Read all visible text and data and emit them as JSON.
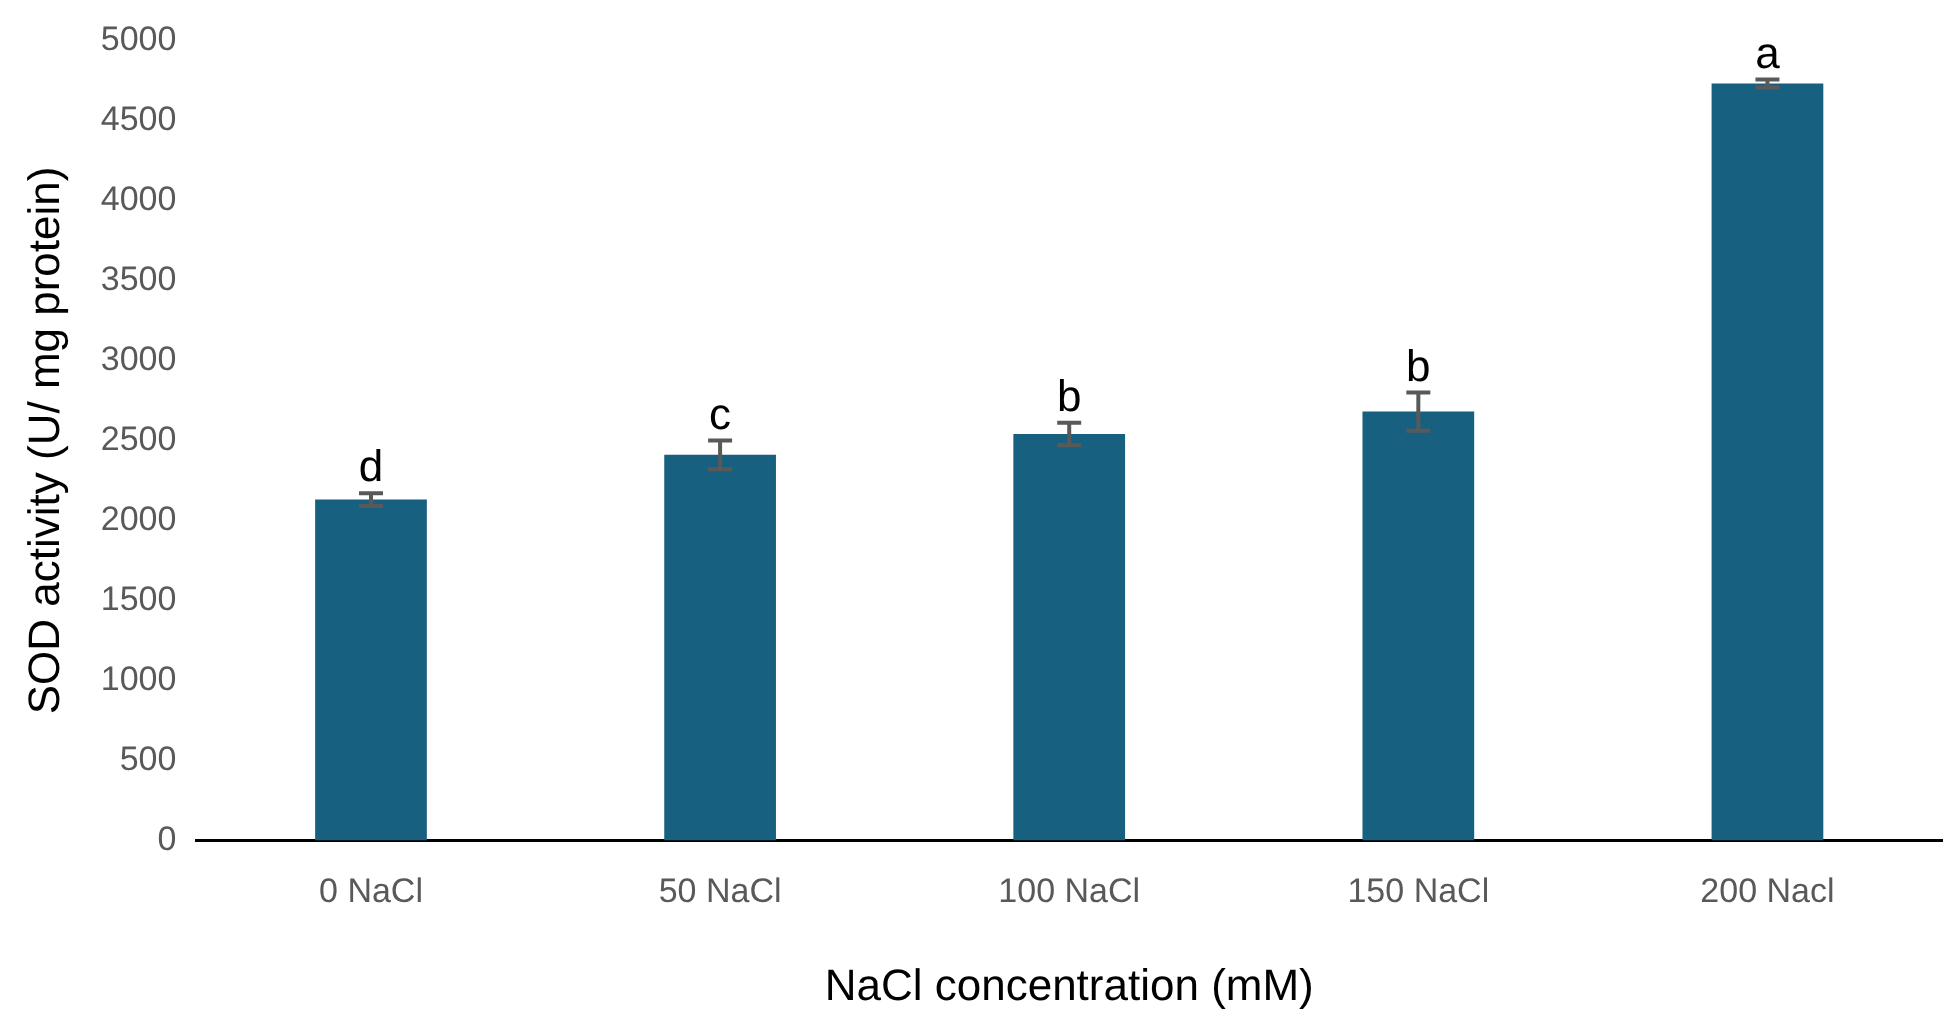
{
  "chart_data": {
    "type": "bar",
    "xlabel": "NaCl concentration (mM)",
    "ylabel": "SOD activity (U/ mg protein)",
    "categories": [
      "0 NaCl",
      "50 NaCl",
      "100 NaCl",
      "150 NaCl",
      "200 Nacl"
    ],
    "values": [
      2130,
      2410,
      2540,
      2680,
      4730
    ],
    "errors": [
      40,
      90,
      70,
      120,
      25
    ],
    "color": "#17607f",
    "ylim": [
      0,
      5000
    ],
    "yticks": [
      0,
      500,
      1000,
      1500,
      2000,
      2500,
      3000,
      3500,
      4000,
      4500,
      5000
    ],
    "grid": false,
    "legend": false,
    "annotations": [
      {
        "text": "d",
        "x": "0 NaCl",
        "y": 2170
      },
      {
        "text": "c",
        "x": "50 NaCl",
        "y": 2500
      },
      {
        "text": "b",
        "x": "100 NaCl",
        "y": 2610
      },
      {
        "text": "b",
        "x": "150 NaCl",
        "y": 2800
      },
      {
        "text": "a",
        "x": "200 Nacl",
        "y": 4755
      }
    ]
  }
}
